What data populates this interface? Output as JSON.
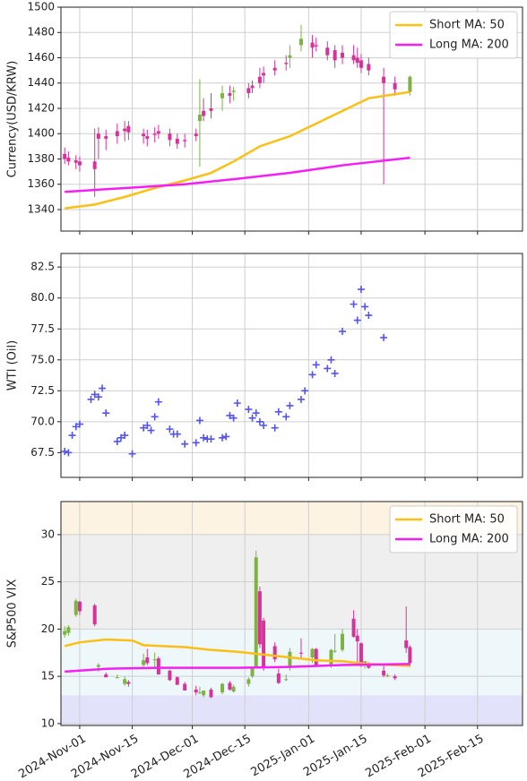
{
  "chart_data": [
    {
      "type": "candlestick",
      "ylabel": "Currency(USD/KRW)",
      "ylim": [
        1323,
        1500
      ],
      "yticks": [
        1340,
        1360,
        1380,
        1400,
        1420,
        1440,
        1460,
        1480,
        1500
      ],
      "xlim": [
        "2024-10-27",
        "2025-02-27"
      ],
      "xticks": [
        "2024-11-01",
        "2024-11-15",
        "2024-12-01",
        "2024-12-15",
        "2025-01-01",
        "2025-01-15",
        "2025-02-01",
        "2025-02-15"
      ],
      "grid": true,
      "legend": "upper right",
      "up_color": "#7cb342",
      "down_color": "#d6339a",
      "x": [
        "2024-10-28",
        "2024-10-29",
        "2024-10-31",
        "2024-11-01",
        "2024-11-05",
        "2024-11-06",
        "2024-11-08",
        "2024-11-11",
        "2024-11-13",
        "2024-11-14",
        "2024-11-18",
        "2024-11-19",
        "2024-11-21",
        "2024-11-22",
        "2024-11-25",
        "2024-11-27",
        "2024-11-29",
        "2024-12-02",
        "2024-12-03",
        "2024-12-04",
        "2024-12-06",
        "2024-12-09",
        "2024-12-11",
        "2024-12-12",
        "2024-12-16",
        "2024-12-17",
        "2024-12-19",
        "2024-12-20",
        "2024-12-23",
        "2024-12-26",
        "2024-12-27",
        "2024-12-30",
        "2025-01-02",
        "2025-01-03",
        "2025-01-06",
        "2025-01-08",
        "2025-01-10",
        "2025-01-13",
        "2025-01-14",
        "2025-01-15",
        "2025-01-17",
        "2025-01-21",
        "2025-01-24",
        "2025-01-28"
      ],
      "open": [
        1384,
        1381,
        1379,
        1378,
        1378,
        1400,
        1398,
        1402,
        1404,
        1406,
        1400,
        1398,
        1400,
        1402,
        1400,
        1396,
        1395,
        1400,
        1410,
        1418,
        1420,
        1428,
        1432,
        1433,
        1436,
        1438,
        1445,
        1448,
        1452,
        1456,
        1460,
        1470,
        1472,
        1470,
        1468,
        1466,
        1464,
        1462,
        1460,
        1458,
        1455,
        1445,
        1440,
        1433
      ],
      "high": [
        1389,
        1386,
        1383,
        1382,
        1404,
        1405,
        1403,
        1408,
        1410,
        1410,
        1404,
        1403,
        1405,
        1407,
        1404,
        1400,
        1400,
        1404,
        1443,
        1428,
        1432,
        1438,
        1438,
        1437,
        1440,
        1442,
        1452,
        1453,
        1458,
        1462,
        1470,
        1486,
        1478,
        1476,
        1473,
        1470,
        1470,
        1470,
        1468,
        1463,
        1460,
        1452,
        1445,
        1446
      ],
      "low": [
        1376,
        1375,
        1372,
        1370,
        1350,
        1380,
        1387,
        1392,
        1394,
        1395,
        1392,
        1390,
        1393,
        1396,
        1390,
        1388,
        1389,
        1394,
        1374,
        1410,
        1412,
        1418,
        1424,
        1426,
        1428,
        1432,
        1436,
        1440,
        1446,
        1450,
        1452,
        1465,
        1460,
        1465,
        1458,
        1452,
        1455,
        1455,
        1452,
        1448,
        1446,
        1360,
        1430,
        1430
      ],
      "close": [
        1380,
        1378,
        1377,
        1375,
        1372,
        1396,
        1396,
        1398,
        1402,
        1401,
        1398,
        1396,
        1399,
        1400,
        1395,
        1392,
        1394,
        1398,
        1415,
        1414,
        1418,
        1432,
        1430,
        1434,
        1432,
        1436,
        1440,
        1446,
        1450,
        1455,
        1462,
        1475,
        1468,
        1469,
        1462,
        1458,
        1460,
        1458,
        1456,
        1452,
        1450,
        1440,
        1435,
        1445
      ],
      "lines": [
        {
          "name": "Short MA: 50",
          "color": "#fbbf16",
          "x": [
            "2024-10-28",
            "2024-11-05",
            "2024-11-13",
            "2024-11-21",
            "2024-11-29",
            "2024-12-06",
            "2024-12-12",
            "2024-12-19",
            "2024-12-27",
            "2025-01-03",
            "2025-01-10",
            "2025-01-17",
            "2025-01-28"
          ],
          "values": [
            1341,
            1344,
            1350,
            1357,
            1363,
            1369,
            1378,
            1390,
            1398,
            1408,
            1418,
            1428,
            1433
          ]
        },
        {
          "name": "Long MA: 200",
          "color": "#f51ef5",
          "x": [
            "2024-10-28",
            "2024-11-13",
            "2024-11-29",
            "2024-12-12",
            "2024-12-27",
            "2025-01-10",
            "2025-01-28"
          ],
          "values": [
            1354,
            1357,
            1360,
            1364,
            1369,
            1375,
            1381
          ]
        }
      ]
    },
    {
      "type": "scatter",
      "ylabel": "WTI (Oil)",
      "ylim": [
        65.5,
        83.6
      ],
      "yticks": [
        67.5,
        {
          "value": 70,
          "label": "70.0"
        },
        72.5,
        {
          "value": 75,
          "label": "75.0"
        },
        77.5,
        {
          "value": 80,
          "label": "80.0"
        },
        82.5
      ],
      "xlim": [
        "2024-10-27",
        "2025-02-27"
      ],
      "xticks": [
        "2024-11-01",
        "2024-11-15",
        "2024-12-01",
        "2024-12-15",
        "2025-01-01",
        "2025-01-15",
        "2025-02-01",
        "2025-02-15"
      ],
      "grid": true,
      "color": "#5353ee",
      "marker": "+",
      "x": [
        "2024-10-28",
        "2024-10-29",
        "2024-10-30",
        "2024-10-31",
        "2024-11-01",
        "2024-11-04",
        "2024-11-05",
        "2024-11-06",
        "2024-11-07",
        "2024-11-08",
        "2024-11-11",
        "2024-11-12",
        "2024-11-13",
        "2024-11-15",
        "2024-11-18",
        "2024-11-19",
        "2024-11-20",
        "2024-11-21",
        "2024-11-22",
        "2024-11-25",
        "2024-11-26",
        "2024-11-27",
        "2024-11-29",
        "2024-12-02",
        "2024-12-03",
        "2024-12-04",
        "2024-12-05",
        "2024-12-06",
        "2024-12-09",
        "2024-12-10",
        "2024-12-11",
        "2024-12-12",
        "2024-12-13",
        "2024-12-16",
        "2024-12-17",
        "2024-12-18",
        "2024-12-19",
        "2024-12-20",
        "2024-12-23",
        "2024-12-24",
        "2024-12-26",
        "2024-12-27",
        "2024-12-30",
        "2024-12-31",
        "2025-01-02",
        "2025-01-03",
        "2025-01-06",
        "2025-01-07",
        "2025-01-08",
        "2025-01-10",
        "2025-01-13",
        "2025-01-14",
        "2025-01-15",
        "2025-01-16",
        "2025-01-17",
        "2025-01-21"
      ],
      "values": [
        67.6,
        67.5,
        68.9,
        69.6,
        69.8,
        71.8,
        72.2,
        72.0,
        72.7,
        70.7,
        68.4,
        68.7,
        68.9,
        67.4,
        69.5,
        69.7,
        69.3,
        70.4,
        71.6,
        69.4,
        69.0,
        69.0,
        68.2,
        68.3,
        70.1,
        68.7,
        68.6,
        68.6,
        68.7,
        68.8,
        70.5,
        70.3,
        71.5,
        71.0,
        70.3,
        70.7,
        70.0,
        69.7,
        69.5,
        70.8,
        70.4,
        71.3,
        71.8,
        72.5,
        73.8,
        74.6,
        74.3,
        75.0,
        73.9,
        77.3,
        79.5,
        78.2,
        80.7,
        79.3,
        78.6,
        76.8
      ]
    },
    {
      "type": "candlestick",
      "ylabel": "S&P500 VIX",
      "ylim": [
        9.8,
        33.5
      ],
      "yticks": [
        10,
        15,
        20,
        25,
        30
      ],
      "xlim": [
        "2024-10-27",
        "2025-02-27"
      ],
      "xticks": [
        {
          "value": "2024-11-01",
          "label": "2024-Nov-01"
        },
        {
          "value": "2024-11-15",
          "label": "2024-Nov-15"
        },
        {
          "value": "2024-12-01",
          "label": "2024-Dec-01"
        },
        {
          "value": "2024-12-15",
          "label": "2024-Dec-15"
        },
        {
          "value": "2025-01-01",
          "label": "2025-Jan-01"
        },
        {
          "value": "2025-01-15",
          "label": "2025-Jan-15"
        },
        {
          "value": "2025-02-01",
          "label": "2025-Feb-01"
        },
        {
          "value": "2025-02-15",
          "label": "2025-Feb-15"
        }
      ],
      "grid": true,
      "legend": "upper right",
      "up_color": "#7cb342",
      "down_color": "#d6339a",
      "bands": [
        {
          "from": 9.8,
          "to": 13,
          "color": "#e2e2fb"
        },
        {
          "from": 13,
          "to": 20,
          "color": "#eef7f9"
        },
        {
          "from": 20,
          "to": 30,
          "color": "#efefef"
        },
        {
          "from": 30,
          "to": 33.5,
          "color": "#fdf3e2"
        }
      ],
      "x": [
        "2024-10-28",
        "2024-10-29",
        "2024-10-31",
        "2024-11-01",
        "2024-11-05",
        "2024-11-06",
        "2024-11-08",
        "2024-11-11",
        "2024-11-13",
        "2024-11-14",
        "2024-11-18",
        "2024-11-19",
        "2024-11-21",
        "2024-11-22",
        "2024-11-25",
        "2024-11-27",
        "2024-11-29",
        "2024-12-02",
        "2024-12-03",
        "2024-12-04",
        "2024-12-06",
        "2024-12-09",
        "2024-12-11",
        "2024-12-12",
        "2024-12-16",
        "2024-12-17",
        "2024-12-18",
        "2024-12-19",
        "2024-12-20",
        "2024-12-23",
        "2024-12-24",
        "2024-12-26",
        "2024-12-27",
        "2024-12-30",
        "2025-01-02",
        "2025-01-03",
        "2025-01-07",
        "2025-01-08",
        "2025-01-10",
        "2025-01-13",
        "2025-01-14",
        "2025-01-15",
        "2025-01-16",
        "2025-01-17",
        "2025-01-21",
        "2025-01-22",
        "2025-01-24",
        "2025-01-27",
        "2025-01-28"
      ],
      "open": [
        19.4,
        19.6,
        21.5,
        22.9,
        22.5,
        16.0,
        15.2,
        14.9,
        14.2,
        14.4,
        16.2,
        17.0,
        16.7,
        16.9,
        15.6,
        14.9,
        14.2,
        13.6,
        13.3,
        13.0,
        13.6,
        13.3,
        14.3,
        13.4,
        14.2,
        15.0,
        16.0,
        24.0,
        20.9,
        18.2,
        15.3,
        14.7,
        15.9,
        17.5,
        17.0,
        17.9,
        16.1,
        17.7,
        17.8,
        21.1,
        19.3,
        18.5,
        16.3,
        16.4,
        15.6,
        15.1,
        15.0,
        18.8,
        18.1
      ],
      "high": [
        20.3,
        20.4,
        23.2,
        23.0,
        22.7,
        16.4,
        15.4,
        15.2,
        15.0,
        14.6,
        17.4,
        17.9,
        17.5,
        17.1,
        15.7,
        15.0,
        14.4,
        14.0,
        13.9,
        13.5,
        13.8,
        14.3,
        14.5,
        14.1,
        14.9,
        16.0,
        28.3,
        24.5,
        21.2,
        18.6,
        15.8,
        15.2,
        18.0,
        19.0,
        18.0,
        18.0,
        17.9,
        19.5,
        20.0,
        22.0,
        20.0,
        18.6,
        16.6,
        16.5,
        16.2,
        15.3,
        15.2,
        22.4,
        18.3
      ],
      "low": [
        19.1,
        19.3,
        21.3,
        21.5,
        20.3,
        15.5,
        14.9,
        14.8,
        14.0,
        13.9,
        15.9,
        16.2,
        16.0,
        15.2,
        14.5,
        14.1,
        13.5,
        13.0,
        13.1,
        12.8,
        12.7,
        13.1,
        13.5,
        13.3,
        13.9,
        14.8,
        15.9,
        18.0,
        15.6,
        16.5,
        14.2,
        14.5,
        15.6,
        16.8,
        16.4,
        16.1,
        15.9,
        17.5,
        17.6,
        19.1,
        16.1,
        16.0,
        15.8,
        15.8,
        14.9,
        14.9,
        14.6,
        17.5,
        16.0
      ],
      "close": [
        19.8,
        20.2,
        23.0,
        21.9,
        20.5,
        16.2,
        14.9,
        14.9,
        14.7,
        14.2,
        16.7,
        16.4,
        16.8,
        15.2,
        14.6,
        14.1,
        13.5,
        13.3,
        13.3,
        13.5,
        12.8,
        14.2,
        13.6,
        13.9,
        14.7,
        15.9,
        27.6,
        18.4,
        15.9,
        16.8,
        14.3,
        14.7,
        17.6,
        17.4,
        17.9,
        16.1,
        17.8,
        17.7,
        19.5,
        19.2,
        18.7,
        16.1,
        16.6,
        15.9,
        15.1,
        15.1,
        14.8,
        18.0,
        16.4
      ],
      "lines": [
        {
          "name": "Short MA: 50",
          "color": "#fbbf16",
          "x": [
            "2024-10-28",
            "2024-11-01",
            "2024-11-08",
            "2024-11-15",
            "2024-11-18",
            "2024-11-29",
            "2024-12-06",
            "2024-12-13",
            "2024-12-20",
            "2024-12-27",
            "2025-01-03",
            "2025-01-10",
            "2025-01-17",
            "2025-01-28"
          ],
          "values": [
            18.2,
            18.6,
            18.9,
            18.8,
            18.3,
            18.1,
            17.8,
            17.6,
            17.3,
            17.0,
            16.7,
            16.6,
            16.3,
            16.1
          ]
        },
        {
          "name": "Long MA: 200",
          "color": "#f51ef5",
          "x": [
            "2024-10-28",
            "2024-11-08",
            "2024-11-22",
            "2024-12-13",
            "2024-12-27",
            "2025-01-10",
            "2025-01-28"
          ],
          "values": [
            15.5,
            15.8,
            15.9,
            15.9,
            16.0,
            16.2,
            16.3
          ]
        }
      ]
    }
  ]
}
